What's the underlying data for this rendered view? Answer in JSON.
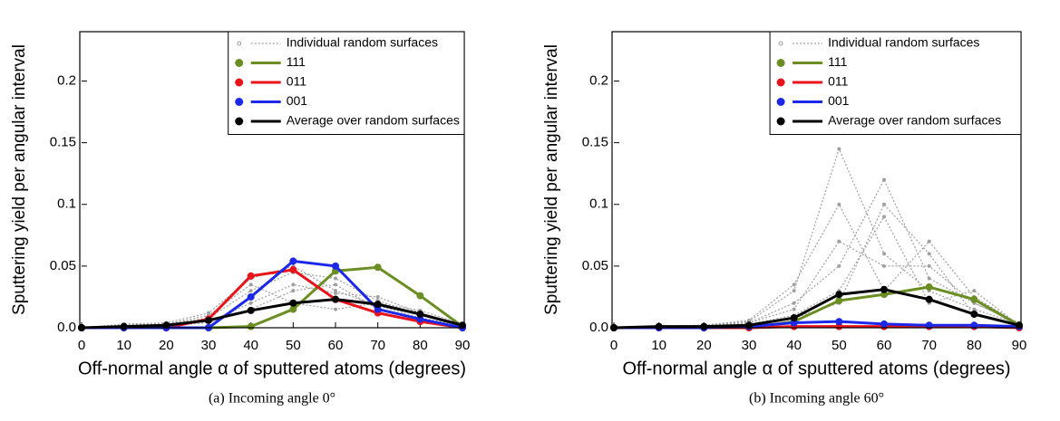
{
  "chart_data": [
    {
      "type": "line",
      "caption": "(a) Incoming angle 0°",
      "xlabel": "Off-normal angle α of sputtered atoms (degrees)",
      "ylabel": "Sputtering yield per angular interval",
      "x": [
        0,
        10,
        20,
        30,
        40,
        50,
        60,
        70,
        80,
        90
      ],
      "xlim": [
        0,
        90
      ],
      "ylim": [
        0,
        0.24
      ],
      "xticks": [
        0,
        10,
        20,
        30,
        40,
        50,
        60,
        70,
        80,
        90
      ],
      "yticks": [
        {
          "value": 0,
          "label": "0.0"
        },
        0.05,
        0.1,
        0.15,
        0.2
      ],
      "individual": {
        "name": "Individual random surfaces",
        "color": "#a0a0a0",
        "runs": [
          [
            0,
            0.003,
            0.004,
            0.012,
            0.04,
            0.05,
            0.03,
            0.018,
            0.008,
            0.002
          ],
          [
            0,
            0.002,
            0.003,
            0.008,
            0.03,
            0.045,
            0.04,
            0.022,
            0.01,
            0.003
          ],
          [
            0,
            0.001,
            0.002,
            0.005,
            0.02,
            0.035,
            0.028,
            0.025,
            0.012,
            0.002
          ],
          [
            0,
            0.002,
            0.003,
            0.01,
            0.035,
            0.02,
            0.015,
            0.02,
            0.014,
            0.003
          ],
          [
            0,
            0.001,
            0.002,
            0.004,
            0.015,
            0.03,
            0.035,
            0.015,
            0.006,
            0.001
          ]
        ]
      },
      "series": [
        {
          "name": "111",
          "color": "#6b8e23",
          "values": [
            0,
            0,
            0,
            0,
            0.001,
            0.015,
            0.046,
            0.049,
            0.026,
            0.001
          ]
        },
        {
          "name": "011",
          "color": "#e8141c",
          "values": [
            0,
            0,
            0,
            0.007,
            0.042,
            0.047,
            0.023,
            0.012,
            0.005,
            0
          ]
        },
        {
          "name": "001",
          "color": "#1c28e8",
          "values": [
            0,
            0,
            0,
            0,
            0.025,
            0.054,
            0.05,
            0.015,
            0.007,
            0
          ]
        },
        {
          "name": "Average over random surfaces",
          "color": "#000000",
          "values": [
            0,
            0.001,
            0.002,
            0.006,
            0.014,
            0.02,
            0.023,
            0.019,
            0.011,
            0.002
          ]
        }
      ]
    },
    {
      "type": "line",
      "caption": "(b) Incoming angle 60°",
      "xlabel": "Off-normal angle α of sputtered atoms (degrees)",
      "ylabel": "Sputtering yield per angular interval",
      "x": [
        0,
        10,
        20,
        30,
        40,
        50,
        60,
        70,
        80,
        90
      ],
      "xlim": [
        0,
        90
      ],
      "ylim": [
        0,
        0.24
      ],
      "xticks": [
        0,
        10,
        20,
        30,
        40,
        50,
        60,
        70,
        80,
        90
      ],
      "yticks": [
        {
          "value": 0,
          "label": "0.0"
        },
        0.05,
        0.1,
        0.15,
        0.2
      ],
      "individual": {
        "name": "Individual random surfaces",
        "color": "#a0a0a0",
        "runs": [
          [
            0,
            0.001,
            0.002,
            0.005,
            0.03,
            0.145,
            0.06,
            0.03,
            0.015,
            0.003
          ],
          [
            0,
            0.001,
            0.002,
            0.004,
            0.02,
            0.05,
            0.12,
            0.04,
            0.02,
            0.004
          ],
          [
            0,
            0.001,
            0.002,
            0.006,
            0.035,
            0.1,
            0.03,
            0.07,
            0.025,
            0.003
          ],
          [
            0,
            0.001,
            0.001,
            0.003,
            0.01,
            0.03,
            0.09,
            0.02,
            0.03,
            0.002
          ],
          [
            0,
            0.001,
            0.002,
            0.004,
            0.015,
            0.07,
            0.05,
            0.05,
            0.02,
            0.003
          ],
          [
            0,
            0.001,
            0.001,
            0.002,
            0.008,
            0.02,
            0.1,
            0.06,
            0.01,
            0.002
          ]
        ]
      },
      "series": [
        {
          "name": "111",
          "color": "#6b8e23",
          "values": [
            0,
            0,
            0,
            0,
            0.005,
            0.022,
            0.027,
            0.033,
            0.023,
            0.002
          ]
        },
        {
          "name": "011",
          "color": "#e8141c",
          "values": [
            0,
            0,
            0,
            0,
            0.001,
            0.001,
            0.001,
            0.001,
            0.001,
            0
          ]
        },
        {
          "name": "001",
          "color": "#1c28e8",
          "values": [
            0,
            0,
            0,
            0.001,
            0.004,
            0.005,
            0.003,
            0.002,
            0.002,
            0.001
          ]
        },
        {
          "name": "Average over random surfaces",
          "color": "#000000",
          "values": [
            0,
            0.001,
            0.001,
            0.002,
            0.008,
            0.027,
            0.031,
            0.023,
            0.011,
            0.002
          ]
        }
      ]
    }
  ]
}
